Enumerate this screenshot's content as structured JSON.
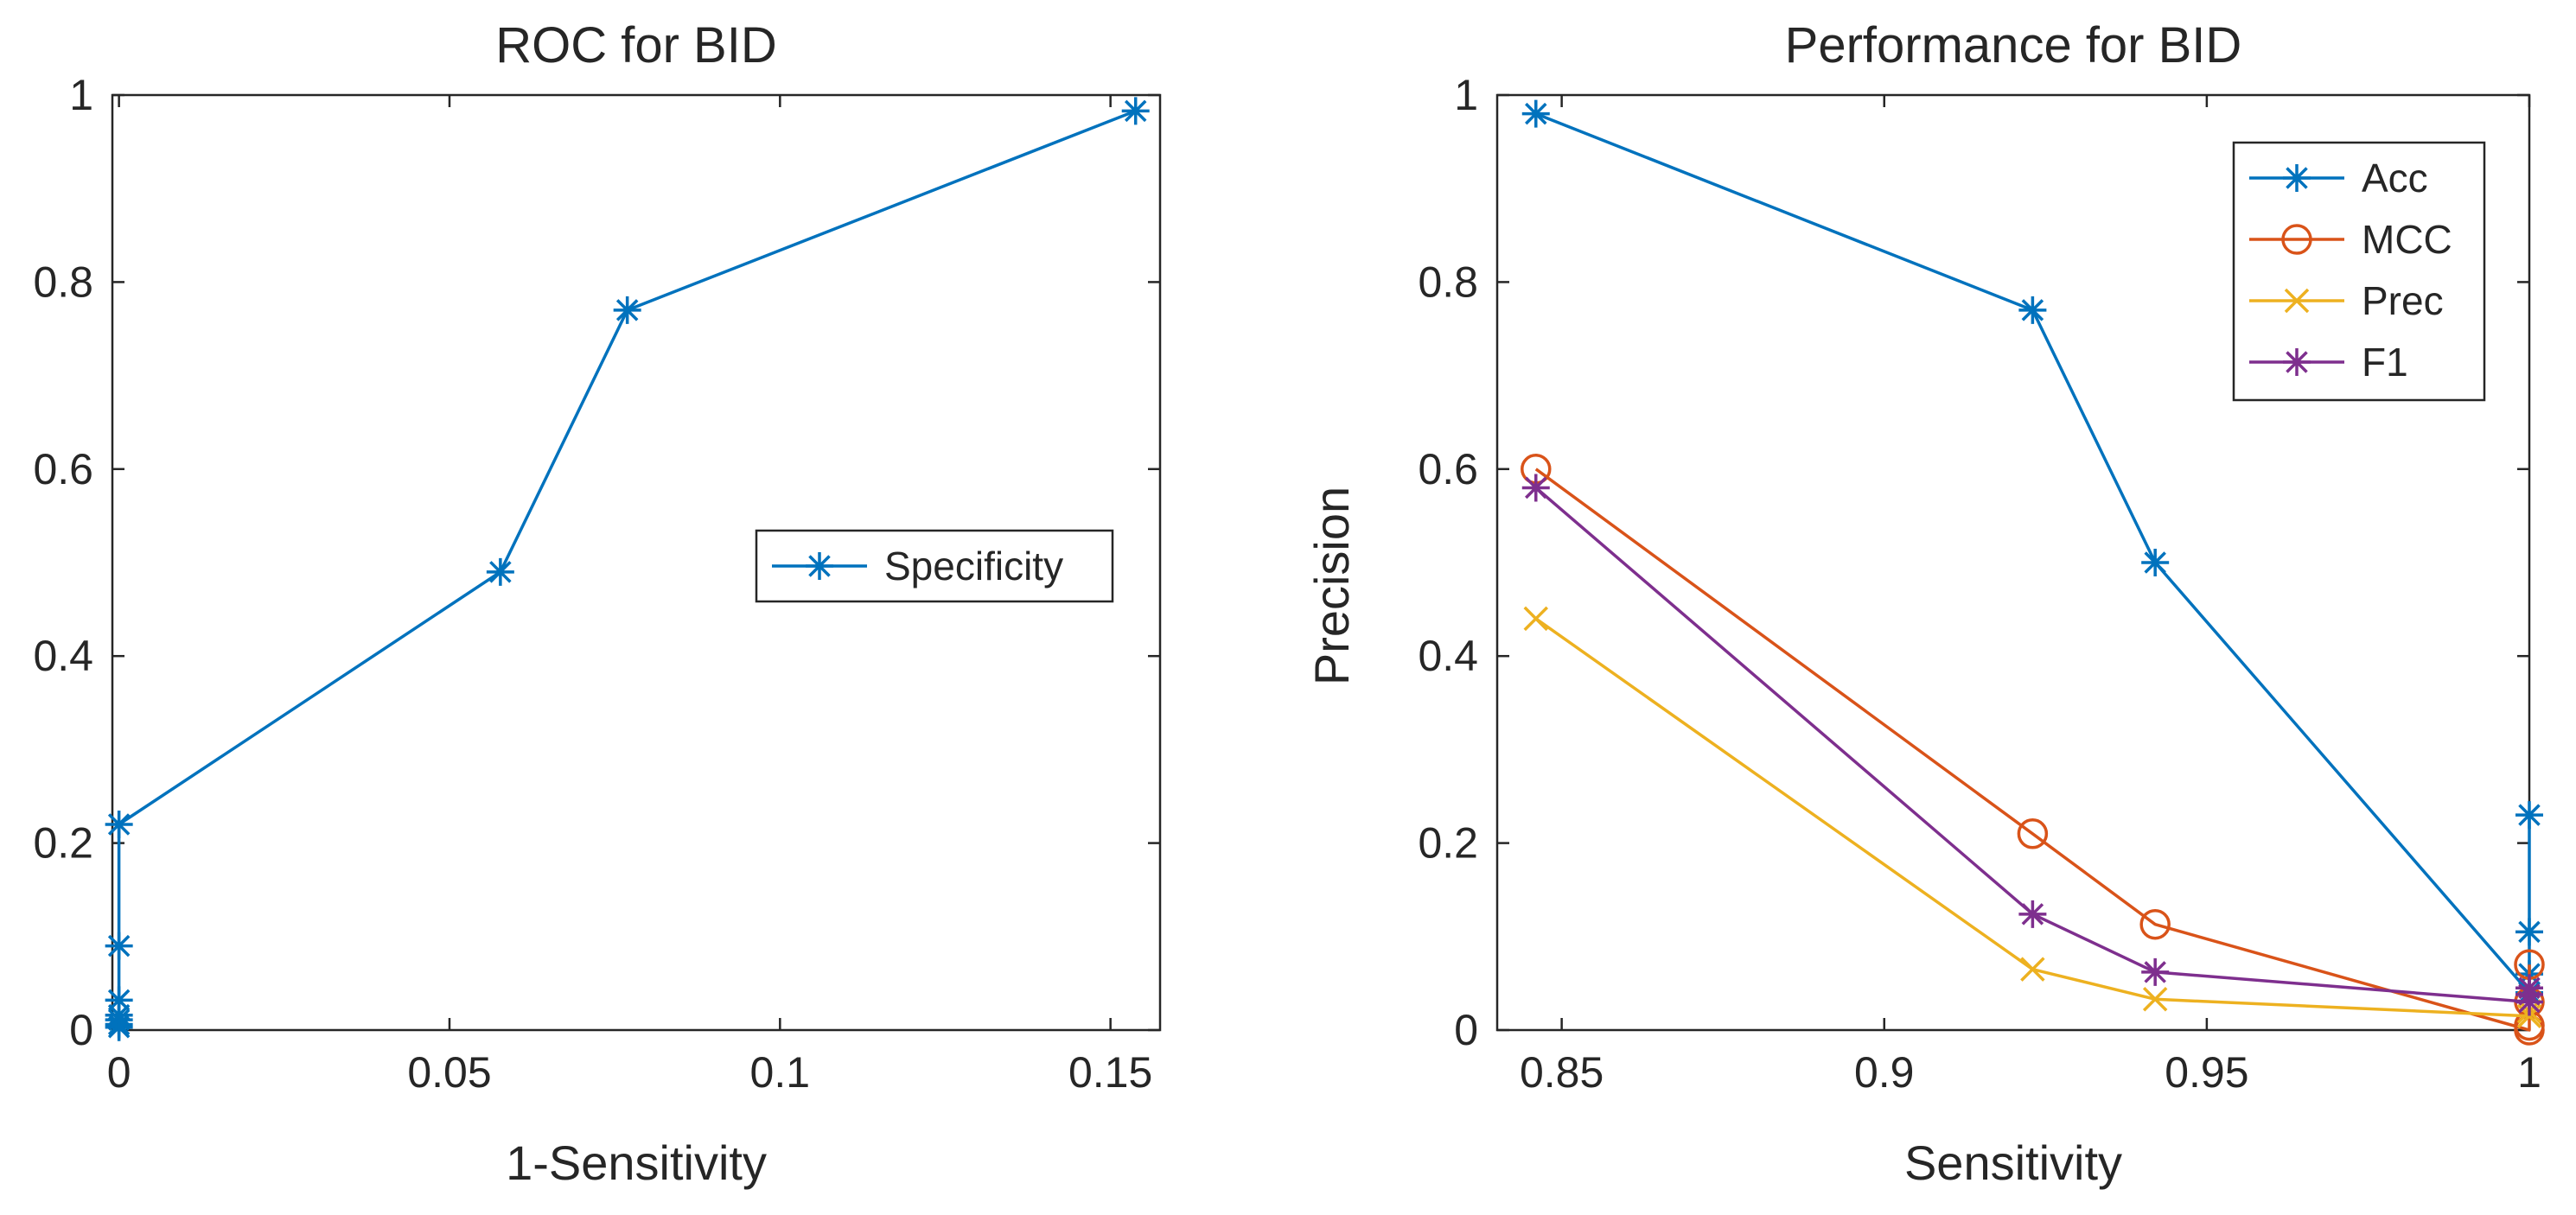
{
  "chart_data": [
    {
      "type": "line",
      "title": "ROC for BID",
      "xlabel": "1-Sensitivity",
      "ylabel": "",
      "xlim": [
        -0.001,
        0.1575
      ],
      "ylim": [
        0,
        1
      ],
      "xticks": [
        0,
        0.05,
        0.1,
        0.15
      ],
      "xtick_labels": [
        "0",
        "0.05",
        "0.1",
        "0.15"
      ],
      "yticks": [
        0,
        0.2,
        0.4,
        0.6,
        0.8,
        1
      ],
      "ytick_labels": [
        "0",
        "0.2",
        "0.4",
        "0.6",
        "0.8",
        "1"
      ],
      "grid": false,
      "legend_position": "right-center",
      "series": [
        {
          "name": "Specificity",
          "color": "#0072BD",
          "marker": "asterisk",
          "x": [
            0,
            0,
            0,
            0,
            0,
            0,
            0,
            0.0577,
            0.0769,
            0.1538
          ],
          "y": [
            0.003,
            0.006,
            0.011,
            0.016,
            0.032,
            0.09,
            0.22,
            0.49,
            0.77,
            0.983
          ]
        }
      ]
    },
    {
      "type": "line",
      "title": "Performance for BID",
      "xlabel": "Sensitivity",
      "ylabel": "Precision",
      "xlim": [
        0.84,
        1
      ],
      "ylim": [
        0,
        1
      ],
      "xticks": [
        0.85,
        0.9,
        0.95,
        1
      ],
      "xtick_labels": [
        "0.85",
        "0.9",
        "0.95",
        "1"
      ],
      "yticks": [
        0,
        0.2,
        0.4,
        0.6,
        0.8,
        1
      ],
      "ytick_labels": [
        "0",
        "0.2",
        "0.4",
        "0.6",
        "0.8",
        "1"
      ],
      "grid": false,
      "legend_position": "top-right",
      "series": [
        {
          "name": "Acc",
          "color": "#0072BD",
          "marker": "asterisk",
          "x": [
            0.846,
            0.923,
            0.942,
            1,
            1,
            1,
            1
          ],
          "y": [
            0.98,
            0.77,
            0.5,
            0.04,
            0.06,
            0.105,
            0.23
          ]
        },
        {
          "name": "MCC",
          "color": "#D95319",
          "marker": "circle",
          "x": [
            0.846,
            0.923,
            0.942,
            1,
            1,
            1,
            1
          ],
          "y": [
            0.6,
            0.21,
            0.113,
            0.0,
            0.005,
            0.03,
            0.07
          ]
        },
        {
          "name": "Prec",
          "color": "#EDB120",
          "marker": "x",
          "x": [
            0.846,
            0.923,
            0.942,
            1,
            1
          ],
          "y": [
            0.44,
            0.065,
            0.033,
            0.015,
            0.02
          ]
        },
        {
          "name": "F1",
          "color": "#7E2F8E",
          "marker": "asterisk",
          "x": [
            0.846,
            0.923,
            0.942,
            1,
            1,
            1
          ],
          "y": [
            0.58,
            0.124,
            0.062,
            0.03,
            0.038,
            0.045
          ]
        }
      ]
    }
  ]
}
